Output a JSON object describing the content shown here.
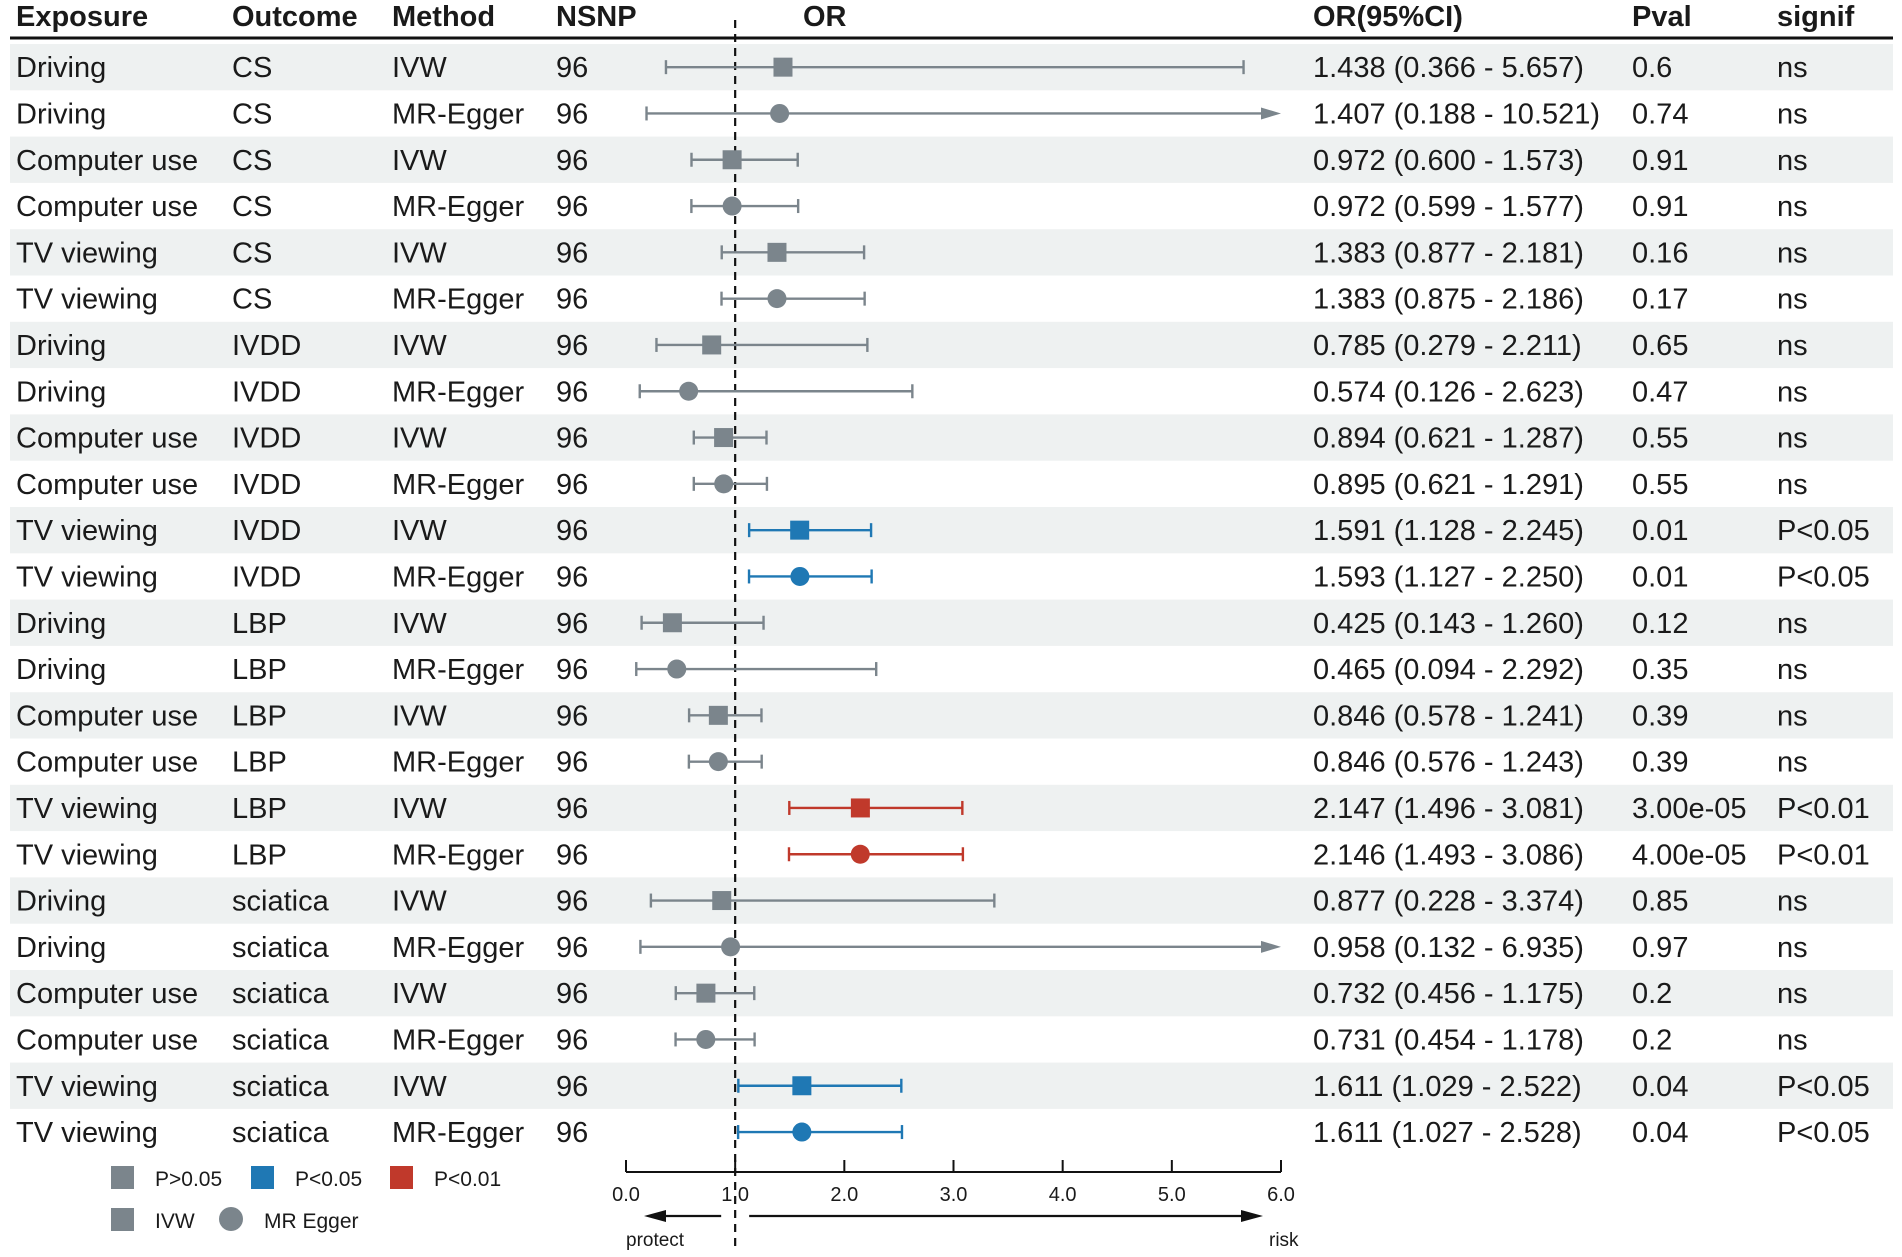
{
  "chart_data": {
    "type": "forest",
    "columns": {
      "exposure": "Exposure",
      "outcome": "Outcome",
      "method": "Method",
      "nsnp": "NSNP",
      "or": "OR",
      "ci": "OR(95%CI)",
      "pval": "Pval",
      "signif": "signif"
    },
    "x_axis": {
      "range": [
        0,
        6
      ],
      "ticks": [
        0,
        1,
        2,
        3,
        4,
        5,
        6
      ],
      "tick_labels": [
        "0.0",
        "1.0",
        "2.0",
        "3.0",
        "4.0",
        "5.0",
        "6.0"
      ],
      "reference_line": 1,
      "left_label": "protect",
      "right_label": "risk"
    },
    "rows": [
      {
        "exposure": "Driving",
        "outcome": "CS",
        "method": "IVW",
        "nsnp": "96",
        "or": 1.438,
        "lower": 0.366,
        "upper": 5.657,
        "ci_text": "1.438 (0.366 - 5.657)",
        "pval": "0.6",
        "signif": "ns"
      },
      {
        "exposure": "Driving",
        "outcome": "CS",
        "method": "MR-Egger",
        "nsnp": "96",
        "or": 1.407,
        "lower": 0.188,
        "upper": 10.521,
        "ci_text": "1.407 (0.188 - 10.521)",
        "pval": "0.74",
        "signif": "ns"
      },
      {
        "exposure": "Computer use",
        "outcome": "CS",
        "method": "IVW",
        "nsnp": "96",
        "or": 0.972,
        "lower": 0.6,
        "upper": 1.573,
        "ci_text": "0.972 (0.600 - 1.573)",
        "pval": "0.91",
        "signif": "ns"
      },
      {
        "exposure": "Computer use",
        "outcome": "CS",
        "method": "MR-Egger",
        "nsnp": "96",
        "or": 0.972,
        "lower": 0.599,
        "upper": 1.577,
        "ci_text": "0.972 (0.599 - 1.577)",
        "pval": "0.91",
        "signif": "ns"
      },
      {
        "exposure": "TV viewing",
        "outcome": "CS",
        "method": "IVW",
        "nsnp": "96",
        "or": 1.383,
        "lower": 0.877,
        "upper": 2.181,
        "ci_text": "1.383 (0.877 - 2.181)",
        "pval": "0.16",
        "signif": "ns"
      },
      {
        "exposure": "TV viewing",
        "outcome": "CS",
        "method": "MR-Egger",
        "nsnp": "96",
        "or": 1.383,
        "lower": 0.875,
        "upper": 2.186,
        "ci_text": "1.383 (0.875 - 2.186)",
        "pval": "0.17",
        "signif": "ns"
      },
      {
        "exposure": "Driving",
        "outcome": "IVDD",
        "method": "IVW",
        "nsnp": "96",
        "or": 0.785,
        "lower": 0.279,
        "upper": 2.211,
        "ci_text": "0.785 (0.279 - 2.211)",
        "pval": "0.65",
        "signif": "ns"
      },
      {
        "exposure": "Driving",
        "outcome": "IVDD",
        "method": "MR-Egger",
        "nsnp": "96",
        "or": 0.574,
        "lower": 0.126,
        "upper": 2.623,
        "ci_text": "0.574 (0.126 - 2.623)",
        "pval": "0.47",
        "signif": "ns"
      },
      {
        "exposure": "Computer use",
        "outcome": "IVDD",
        "method": "IVW",
        "nsnp": "96",
        "or": 0.894,
        "lower": 0.621,
        "upper": 1.287,
        "ci_text": "0.894 (0.621 - 1.287)",
        "pval": "0.55",
        "signif": "ns"
      },
      {
        "exposure": "Computer use",
        "outcome": "IVDD",
        "method": "MR-Egger",
        "nsnp": "96",
        "or": 0.895,
        "lower": 0.621,
        "upper": 1.291,
        "ci_text": "0.895 (0.621 - 1.291)",
        "pval": "0.55",
        "signif": "ns"
      },
      {
        "exposure": "TV viewing",
        "outcome": "IVDD",
        "method": "IVW",
        "nsnp": "96",
        "or": 1.591,
        "lower": 1.128,
        "upper": 2.245,
        "ci_text": "1.591 (1.128 - 2.245)",
        "pval": "0.01",
        "signif": "P<0.05"
      },
      {
        "exposure": "TV viewing",
        "outcome": "IVDD",
        "method": "MR-Egger",
        "nsnp": "96",
        "or": 1.593,
        "lower": 1.127,
        "upper": 2.25,
        "ci_text": "1.593 (1.127 - 2.250)",
        "pval": "0.01",
        "signif": "P<0.05"
      },
      {
        "exposure": "Driving",
        "outcome": "LBP",
        "method": "IVW",
        "nsnp": "96",
        "or": 0.425,
        "lower": 0.143,
        "upper": 1.26,
        "ci_text": "0.425 (0.143 - 1.260)",
        "pval": "0.12",
        "signif": "ns"
      },
      {
        "exposure": "Driving",
        "outcome": "LBP",
        "method": "MR-Egger",
        "nsnp": "96",
        "or": 0.465,
        "lower": 0.094,
        "upper": 2.292,
        "ci_text": "0.465 (0.094 - 2.292)",
        "pval": "0.35",
        "signif": "ns"
      },
      {
        "exposure": "Computer use",
        "outcome": "LBP",
        "method": "IVW",
        "nsnp": "96",
        "or": 0.846,
        "lower": 0.578,
        "upper": 1.241,
        "ci_text": "0.846 (0.578 - 1.241)",
        "pval": "0.39",
        "signif": "ns"
      },
      {
        "exposure": "Computer use",
        "outcome": "LBP",
        "method": "MR-Egger",
        "nsnp": "96",
        "or": 0.846,
        "lower": 0.576,
        "upper": 1.243,
        "ci_text": "0.846 (0.576 - 1.243)",
        "pval": "0.39",
        "signif": "ns"
      },
      {
        "exposure": "TV viewing",
        "outcome": "LBP",
        "method": "IVW",
        "nsnp": "96",
        "or": 2.147,
        "lower": 1.496,
        "upper": 3.081,
        "ci_text": "2.147 (1.496 - 3.081)",
        "pval": "3.00e-05",
        "signif": "P<0.01"
      },
      {
        "exposure": "TV viewing",
        "outcome": "LBP",
        "method": "MR-Egger",
        "nsnp": "96",
        "or": 2.146,
        "lower": 1.493,
        "upper": 3.086,
        "ci_text": "2.146 (1.493 - 3.086)",
        "pval": "4.00e-05",
        "signif": "P<0.01"
      },
      {
        "exposure": "Driving",
        "outcome": "sciatica",
        "method": "IVW",
        "nsnp": "96",
        "or": 0.877,
        "lower": 0.228,
        "upper": 3.374,
        "ci_text": "0.877 (0.228 - 3.374)",
        "pval": "0.85",
        "signif": "ns"
      },
      {
        "exposure": "Driving",
        "outcome": "sciatica",
        "method": "MR-Egger",
        "nsnp": "96",
        "or": 0.958,
        "lower": 0.132,
        "upper": 6.935,
        "ci_text": "0.958 (0.132 - 6.935)",
        "pval": "0.97",
        "signif": "ns"
      },
      {
        "exposure": "Computer use",
        "outcome": "sciatica",
        "method": "IVW",
        "nsnp": "96",
        "or": 0.732,
        "lower": 0.456,
        "upper": 1.175,
        "ci_text": "0.732 (0.456 - 1.175)",
        "pval": "0.2",
        "signif": "ns"
      },
      {
        "exposure": "Computer use",
        "outcome": "sciatica",
        "method": "MR-Egger",
        "nsnp": "96",
        "or": 0.731,
        "lower": 0.454,
        "upper": 1.178,
        "ci_text": "0.731 (0.454 - 1.178)",
        "pval": "0.2",
        "signif": "ns"
      },
      {
        "exposure": "TV viewing",
        "outcome": "sciatica",
        "method": "IVW",
        "nsnp": "96",
        "or": 1.611,
        "lower": 1.029,
        "upper": 2.522,
        "ci_text": "1.611 (1.029 - 2.522)",
        "pval": "0.04",
        "signif": "P<0.05"
      },
      {
        "exposure": "TV viewing",
        "outcome": "sciatica",
        "method": "MR-Egger",
        "nsnp": "96",
        "or": 1.611,
        "lower": 1.027,
        "upper": 2.528,
        "ci_text": "1.611 (1.027 - 2.528)",
        "pval": "0.04",
        "signif": "P<0.05"
      }
    ],
    "legend": {
      "significance": [
        {
          "label": "P>0.05",
          "color": "#7b858c"
        },
        {
          "label": "P<0.05",
          "color": "#1f78b4"
        },
        {
          "label": "P<0.01",
          "color": "#c0392b"
        }
      ],
      "methods": [
        {
          "label": "IVW",
          "shape": "square"
        },
        {
          "label": "MR Egger",
          "shape": "circle"
        }
      ]
    }
  },
  "colors": {
    "ns": "#7b858c",
    "p05": "#1f78b4",
    "p01": "#c0392b",
    "stripe": "#eef1f1",
    "line": "#111111"
  }
}
